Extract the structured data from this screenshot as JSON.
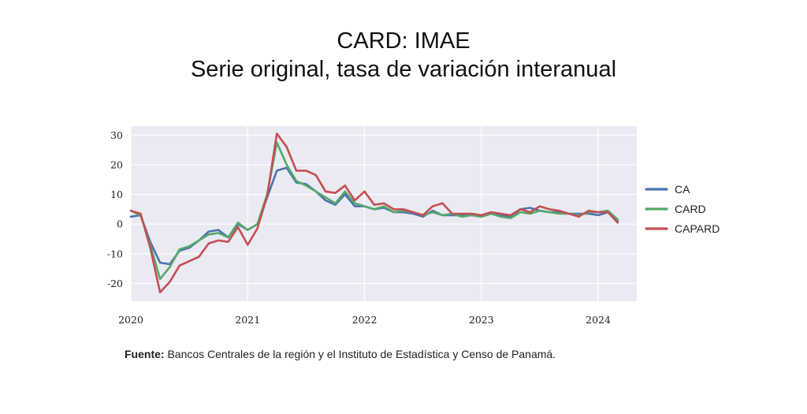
{
  "title": "CARD: IMAE",
  "subtitle": "Serie original, tasa de variación interanual",
  "source": {
    "label": "Fuente:",
    "text": " Bancos Centrales de la región y el Instituto de Estadística y Censo de Panamá."
  },
  "chart_data": {
    "type": "line",
    "title": "CARD: IMAE",
    "subtitle": "Serie original, tasa de variación interanual",
    "xlabel": "",
    "ylabel": "",
    "x_ticks": [
      "2020",
      "2021",
      "2022",
      "2023",
      "2024"
    ],
    "y_ticks": [
      30,
      20,
      10,
      0,
      -10,
      -20
    ],
    "ylim": [
      -26,
      33
    ],
    "xlim": [
      2020.0,
      2024.33
    ],
    "grid": true,
    "background": "#eaeaf2",
    "legend_position": "right",
    "x": [
      "2020-01",
      "2020-02",
      "2020-03",
      "2020-04",
      "2020-05",
      "2020-06",
      "2020-07",
      "2020-08",
      "2020-09",
      "2020-10",
      "2020-11",
      "2020-12",
      "2021-01",
      "2021-02",
      "2021-03",
      "2021-04",
      "2021-05",
      "2021-06",
      "2021-07",
      "2021-08",
      "2021-09",
      "2021-10",
      "2021-11",
      "2021-12",
      "2022-01",
      "2022-02",
      "2022-03",
      "2022-04",
      "2022-05",
      "2022-06",
      "2022-07",
      "2022-08",
      "2022-09",
      "2022-10",
      "2022-11",
      "2022-12",
      "2023-01",
      "2023-02",
      "2023-03",
      "2023-04",
      "2023-05",
      "2023-06",
      "2023-07",
      "2023-08",
      "2023-09",
      "2023-10",
      "2023-11",
      "2023-12",
      "2024-01",
      "2024-02",
      "2024-03"
    ],
    "series": [
      {
        "name": "CA",
        "color": "#4c72b0",
        "values": [
          2.5,
          3.0,
          -6.0,
          -13.0,
          -13.5,
          -9.0,
          -8.0,
          -5.5,
          -2.5,
          -2.0,
          -4.5,
          0.0,
          -2.0,
          0.0,
          9.0,
          18.0,
          19.0,
          14.0,
          13.5,
          11.0,
          8.0,
          6.5,
          10.0,
          6.0,
          6.0,
          5.0,
          5.5,
          4.0,
          4.0,
          3.5,
          2.5,
          4.5,
          3.0,
          3.0,
          3.0,
          3.0,
          2.5,
          3.5,
          3.0,
          2.5,
          5.0,
          5.5,
          4.5,
          4.0,
          4.0,
          3.5,
          3.5,
          3.5,
          3.0,
          4.0,
          1.0
        ]
      },
      {
        "name": "CARD",
        "color": "#55a868",
        "values": [
          4.5,
          3.0,
          -7.0,
          -18.5,
          -14.5,
          -8.5,
          -7.5,
          -5.5,
          -3.5,
          -3.0,
          -4.5,
          0.5,
          -2.0,
          0.0,
          10.0,
          27.5,
          20.0,
          14.5,
          13.0,
          11.0,
          9.0,
          7.0,
          11.0,
          7.0,
          6.0,
          5.0,
          6.0,
          4.0,
          4.5,
          4.0,
          3.0,
          4.0,
          3.0,
          3.5,
          2.5,
          3.0,
          2.5,
          3.5,
          2.5,
          2.0,
          4.0,
          3.5,
          4.5,
          4.0,
          3.5,
          3.5,
          3.0,
          4.0,
          4.0,
          4.5,
          1.5
        ]
      },
      {
        "name": "CAPARD",
        "color": "#c44e52",
        "values": [
          4.5,
          3.5,
          -8.0,
          -23.0,
          -19.5,
          -14.0,
          -12.5,
          -11.0,
          -6.5,
          -5.5,
          -6.0,
          -1.0,
          -7.0,
          -1.5,
          9.5,
          30.5,
          26.0,
          18.0,
          18.0,
          16.5,
          11.0,
          10.5,
          13.0,
          8.0,
          11.0,
          6.5,
          7.0,
          5.0,
          5.0,
          4.0,
          3.0,
          6.0,
          7.0,
          3.5,
          3.5,
          3.5,
          3.0,
          4.0,
          3.5,
          3.0,
          5.0,
          4.0,
          6.0,
          5.0,
          4.5,
          3.5,
          2.5,
          4.5,
          4.0,
          4.0,
          0.5
        ]
      }
    ]
  }
}
